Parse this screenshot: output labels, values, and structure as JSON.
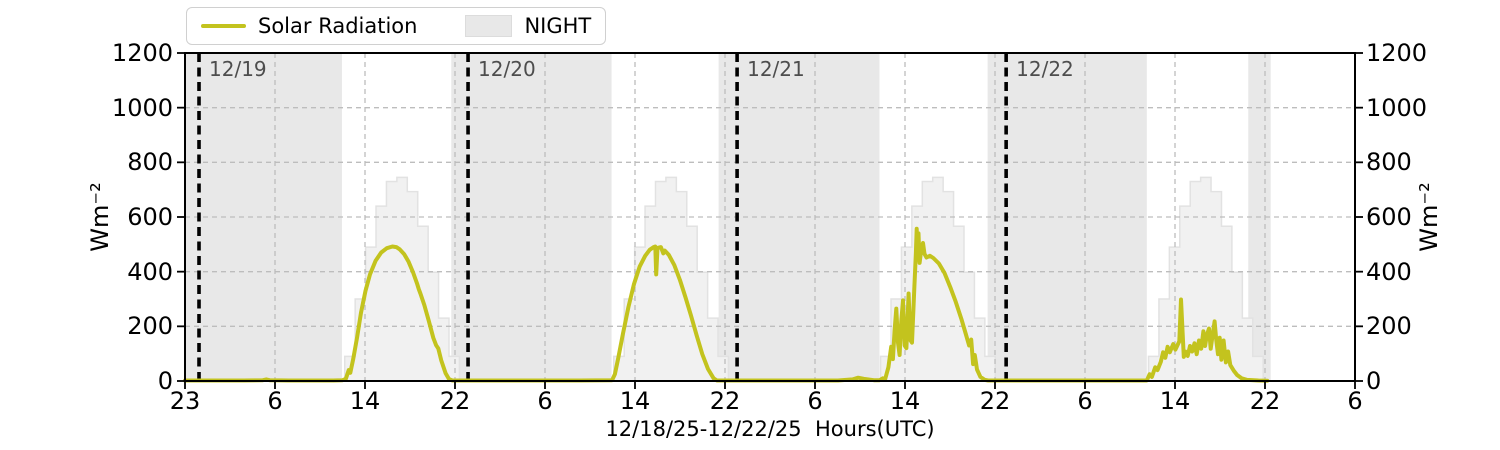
{
  "chart_data": {
    "type": "line",
    "title": "",
    "xlabel": "12/18/25-12/22/25  Hours(UTC)",
    "ylabel_left": "Wm⁻²",
    "ylabel_right": "Wm⁻²",
    "ylim": [
      0,
      1200
    ],
    "yticks": [
      0,
      200,
      400,
      600,
      800,
      1000,
      1200
    ],
    "ygrid_values": [
      200,
      400,
      600,
      800,
      1000
    ],
    "xtick_labels": [
      "23",
      "6",
      "14",
      "22",
      "6",
      "14",
      "22",
      "6",
      "14",
      "22",
      "6",
      "14",
      "22",
      "6"
    ],
    "time_axis": {
      "t_start_hours": -1.25,
      "t_span_hours": 104.37
    },
    "day_lines": [
      {
        "t": 0,
        "label": "12/19"
      },
      {
        "t": 24,
        "label": "12/20"
      },
      {
        "t": 48,
        "label": "12/21"
      },
      {
        "t": 72,
        "label": "12/22"
      }
    ],
    "night_periods": [
      [
        -1.25,
        12.75
      ],
      [
        22.5,
        36.8
      ],
      [
        46.35,
        60.7
      ],
      [
        70.35,
        84.55
      ],
      [
        93.6,
        95.6
      ]
    ],
    "clearsky_steps": {
      "starts": [
        13.0,
        37.0,
        60.8,
        84.7
      ],
      "step_width_hours": 0.93,
      "values": [
        90,
        300,
        490,
        640,
        730,
        745,
        693,
        566,
        398,
        230,
        90
      ]
    },
    "legend": [
      {
        "label": "Solar Radiation",
        "type": "line"
      },
      {
        "label": "NIGHT",
        "type": "patch"
      }
    ],
    "series": [
      {
        "name": "Solar Radiation",
        "points": [
          [
            -1.25,
            2
          ],
          [
            0,
            2
          ],
          [
            2,
            2
          ],
          [
            4,
            2
          ],
          [
            5.7,
            3
          ],
          [
            6.0,
            6
          ],
          [
            6.3,
            3
          ],
          [
            8,
            2
          ],
          [
            10,
            2
          ],
          [
            12,
            2
          ],
          [
            12.8,
            3
          ],
          [
            13.1,
            8
          ],
          [
            13.35,
            40
          ],
          [
            13.5,
            30
          ],
          [
            13.75,
            80
          ],
          [
            14.1,
            160
          ],
          [
            14.45,
            250
          ],
          [
            14.85,
            330
          ],
          [
            15.25,
            390
          ],
          [
            15.75,
            440
          ],
          [
            16.25,
            470
          ],
          [
            16.75,
            486
          ],
          [
            17.25,
            492
          ],
          [
            17.6,
            490
          ],
          [
            17.9,
            482
          ],
          [
            18.3,
            464
          ],
          [
            18.7,
            436
          ],
          [
            19.1,
            397
          ],
          [
            19.45,
            357
          ],
          [
            19.6,
            337
          ],
          [
            19.75,
            320
          ],
          [
            20.1,
            278
          ],
          [
            20.5,
            220
          ],
          [
            20.9,
            158
          ],
          [
            21.15,
            131
          ],
          [
            21.35,
            119
          ],
          [
            21.6,
            76
          ],
          [
            22.0,
            28
          ],
          [
            22.3,
            7
          ],
          [
            22.6,
            2
          ],
          [
            30,
            2
          ],
          [
            34,
            2
          ],
          [
            36.85,
            3
          ],
          [
            37.1,
            25
          ],
          [
            37.4,
            85
          ],
          [
            37.8,
            170
          ],
          [
            38.3,
            270
          ],
          [
            38.8,
            355
          ],
          [
            39.3,
            418
          ],
          [
            39.8,
            458
          ],
          [
            40.2,
            480
          ],
          [
            40.55,
            490
          ],
          [
            40.7,
            492
          ],
          [
            40.78,
            390
          ],
          [
            40.9,
            487
          ],
          [
            41.2,
            490
          ],
          [
            41.42,
            467
          ],
          [
            41.55,
            477
          ],
          [
            41.9,
            462
          ],
          [
            42.4,
            424
          ],
          [
            42.9,
            370
          ],
          [
            43.4,
            306
          ],
          [
            43.9,
            238
          ],
          [
            44.4,
            166
          ],
          [
            44.9,
            98
          ],
          [
            45.4,
            44
          ],
          [
            45.9,
            10
          ],
          [
            46.2,
            2
          ],
          [
            52,
            2
          ],
          [
            57,
            2
          ],
          [
            58.3,
            6
          ],
          [
            58.8,
            12
          ],
          [
            59.3,
            8
          ],
          [
            60.2,
            3
          ],
          [
            60.7,
            3
          ],
          [
            61.0,
            10
          ],
          [
            61.2,
            6
          ],
          [
            61.5,
            50
          ],
          [
            61.75,
            125
          ],
          [
            61.9,
            80
          ],
          [
            62.05,
            185
          ],
          [
            62.2,
            265
          ],
          [
            62.35,
            140
          ],
          [
            62.5,
            95
          ],
          [
            62.65,
            220
          ],
          [
            62.8,
            295
          ],
          [
            62.95,
            130
          ],
          [
            63.1,
            120
          ],
          [
            63.3,
            320
          ],
          [
            63.45,
            150
          ],
          [
            63.6,
            140
          ],
          [
            63.8,
            330
          ],
          [
            63.95,
            470
          ],
          [
            64.02,
            557
          ],
          [
            64.1,
            480
          ],
          [
            64.18,
            540
          ],
          [
            64.28,
            432
          ],
          [
            64.42,
            478
          ],
          [
            64.58,
            505
          ],
          [
            64.72,
            465
          ],
          [
            64.9,
            452
          ],
          [
            65.2,
            458
          ],
          [
            65.5,
            450
          ],
          [
            66.0,
            430
          ],
          [
            66.5,
            395
          ],
          [
            67.0,
            345
          ],
          [
            67.5,
            290
          ],
          [
            68.0,
            228
          ],
          [
            68.4,
            172
          ],
          [
            68.7,
            130
          ],
          [
            68.88,
            152
          ],
          [
            69.05,
            62
          ],
          [
            69.2,
            95
          ],
          [
            69.4,
            42
          ],
          [
            69.7,
            15
          ],
          [
            70.1,
            4
          ],
          [
            70.4,
            2
          ],
          [
            76,
            2
          ],
          [
            82,
            2
          ],
          [
            84.55,
            2
          ],
          [
            84.8,
            25
          ],
          [
            85.0,
            15
          ],
          [
            85.3,
            50
          ],
          [
            85.5,
            40
          ],
          [
            85.8,
            70
          ],
          [
            86.0,
            105
          ],
          [
            86.2,
            85
          ],
          [
            86.4,
            125
          ],
          [
            86.6,
            105
          ],
          [
            86.9,
            135
          ],
          [
            87.1,
            115
          ],
          [
            87.45,
            145
          ],
          [
            87.6,
            298
          ],
          [
            87.75,
            170
          ],
          [
            87.85,
            88
          ],
          [
            88.0,
            108
          ],
          [
            88.2,
            92
          ],
          [
            88.4,
            128
          ],
          [
            88.6,
            108
          ],
          [
            88.8,
            138
          ],
          [
            89.0,
            98
          ],
          [
            89.2,
            148
          ],
          [
            89.4,
            118
          ],
          [
            89.6,
            182
          ],
          [
            89.75,
            128
          ],
          [
            89.9,
            168
          ],
          [
            90.1,
            192
          ],
          [
            90.25,
            118
          ],
          [
            90.4,
            162
          ],
          [
            90.6,
            218
          ],
          [
            90.75,
            148
          ],
          [
            90.9,
            98
          ],
          [
            91.05,
            158
          ],
          [
            91.2,
            78
          ],
          [
            91.4,
            148
          ],
          [
            91.6,
            68
          ],
          [
            91.8,
            108
          ],
          [
            92.0,
            58
          ],
          [
            92.3,
            38
          ],
          [
            92.6,
            22
          ],
          [
            93.0,
            10
          ],
          [
            93.5,
            4
          ],
          [
            94.5,
            2
          ],
          [
            95.3,
            1
          ]
        ]
      }
    ]
  },
  "colors": {
    "solar_line": "#c3c31e",
    "night_fill": "#e8e8e8",
    "clearsky_fill": "#f1f1f1",
    "clearsky_edge": "#e2e2e2",
    "grid": "#bdbdbd",
    "day_line": "#000000",
    "day_label_text": "#4d4d4d",
    "axis_text": "#000000",
    "legend_border": "#d0d0d0",
    "spine": "#000000"
  }
}
